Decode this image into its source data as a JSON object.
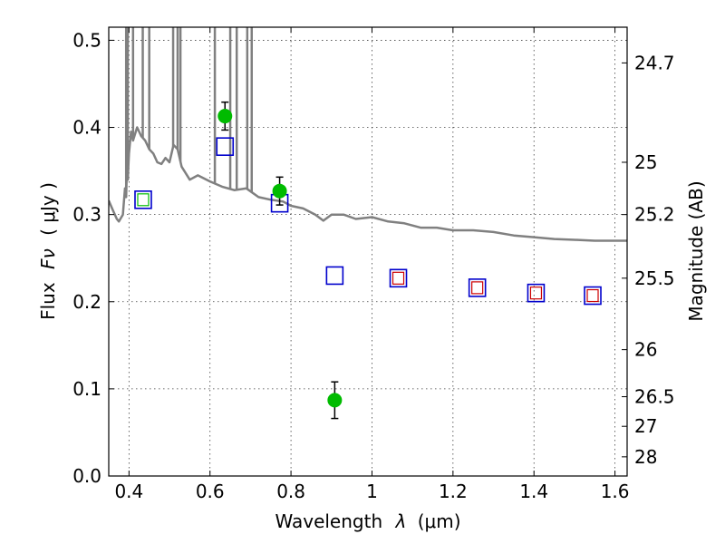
{
  "chart_data": {
    "type": "scatter",
    "title": "",
    "xlabel": "Wavelength",
    "xlabel_symbol": "λ",
    "xlabel_unit": "(μm)",
    "ylabel": "Flux",
    "ylabel_symbol": "Fν",
    "ylabel_unit": "( μJy )",
    "y2label": "Magnitude (AB)",
    "xlim": [
      0.35,
      1.63
    ],
    "ylim": [
      0.0,
      0.515
    ],
    "xticks": [
      0.4,
      0.6,
      0.8,
      1.0,
      1.2,
      1.4,
      1.6
    ],
    "xtick_labels": [
      "0.4",
      "0.6",
      "0.8",
      "1",
      "1.2",
      "1.4",
      "1.6"
    ],
    "yticks": [
      0.0,
      0.1,
      0.2,
      0.3,
      0.4,
      0.5
    ],
    "ytick_labels": [
      "0.0",
      "0.1",
      "0.2",
      "0.3",
      "0.4",
      "0.5"
    ],
    "y2ticks": [
      {
        "label": "24.7",
        "flux": 0.474
      },
      {
        "label": "25",
        "flux": 0.36
      },
      {
        "label": "25.2",
        "flux": 0.3
      },
      {
        "label": "25.5",
        "flux": 0.227
      },
      {
        "label": "26",
        "flux": 0.145
      },
      {
        "label": "26.5",
        "flux": 0.091
      },
      {
        "label": "27",
        "flux": 0.057
      },
      {
        "label": "28",
        "flux": 0.022
      }
    ],
    "grid": true,
    "colors": {
      "model": "#808080",
      "observed": "#00bb00",
      "model_box_outer": "#0000cc",
      "band_box_green": "#00bb00",
      "band_box_red": "#cc0000"
    },
    "series": [
      {
        "kind": "model-spectrum",
        "x": [
          0.35,
          0.36,
          0.37,
          0.375,
          0.385,
          0.39,
          0.393,
          0.395,
          0.397,
          0.4,
          0.405,
          0.41,
          0.42,
          0.43,
          0.44,
          0.45,
          0.46,
          0.47,
          0.48,
          0.49,
          0.5,
          0.51,
          0.52,
          0.53,
          0.55,
          0.57,
          0.6,
          0.63,
          0.66,
          0.69,
          0.72,
          0.75,
          0.78,
          0.8,
          0.83,
          0.86,
          0.88,
          0.9,
          0.93,
          0.96,
          1.0,
          1.04,
          1.08,
          1.12,
          1.16,
          1.2,
          1.25,
          1.3,
          1.35,
          1.4,
          1.45,
          1.5,
          1.55,
          1.6,
          1.63
        ],
        "y": [
          0.316,
          0.305,
          0.295,
          0.292,
          0.3,
          0.33,
          0.32,
          0.355,
          0.34,
          0.37,
          0.395,
          0.385,
          0.4,
          0.39,
          0.385,
          0.375,
          0.37,
          0.36,
          0.358,
          0.365,
          0.36,
          0.38,
          0.375,
          0.355,
          0.34,
          0.345,
          0.338,
          0.332,
          0.328,
          0.33,
          0.32,
          0.317,
          0.315,
          0.31,
          0.307,
          0.3,
          0.293,
          0.3,
          0.3,
          0.295,
          0.297,
          0.292,
          0.29,
          0.285,
          0.285,
          0.282,
          0.282,
          0.28,
          0.276,
          0.274,
          0.272,
          0.271,
          0.27,
          0.27,
          0.27
        ]
      },
      {
        "kind": "emission-spikes",
        "x": [
          0.393,
          0.397,
          0.41,
          0.434,
          0.45,
          0.509,
          0.52,
          0.527,
          0.612,
          0.65,
          0.666,
          0.692,
          0.703
        ],
        "y_top": [
          0.515,
          0.515,
          0.515,
          0.515,
          0.515,
          0.515,
          0.515,
          0.515,
          0.515,
          0.515,
          0.515,
          0.515,
          0.515
        ]
      },
      {
        "kind": "model-bands",
        "x": [
          0.435,
          0.637,
          0.772,
          0.908,
          1.065,
          1.26,
          1.405,
          1.545
        ],
        "y": [
          0.317,
          0.378,
          0.313,
          0.23,
          0.227,
          0.216,
          0.21,
          0.207
        ],
        "inner": [
          "green",
          "none",
          "none",
          "none",
          "red",
          "red",
          "red",
          "red"
        ]
      },
      {
        "kind": "observed",
        "x": [
          0.637,
          0.772,
          0.908
        ],
        "y": [
          0.413,
          0.327,
          0.087
        ],
        "yerr": [
          0.016,
          0.016,
          0.021
        ]
      }
    ]
  }
}
